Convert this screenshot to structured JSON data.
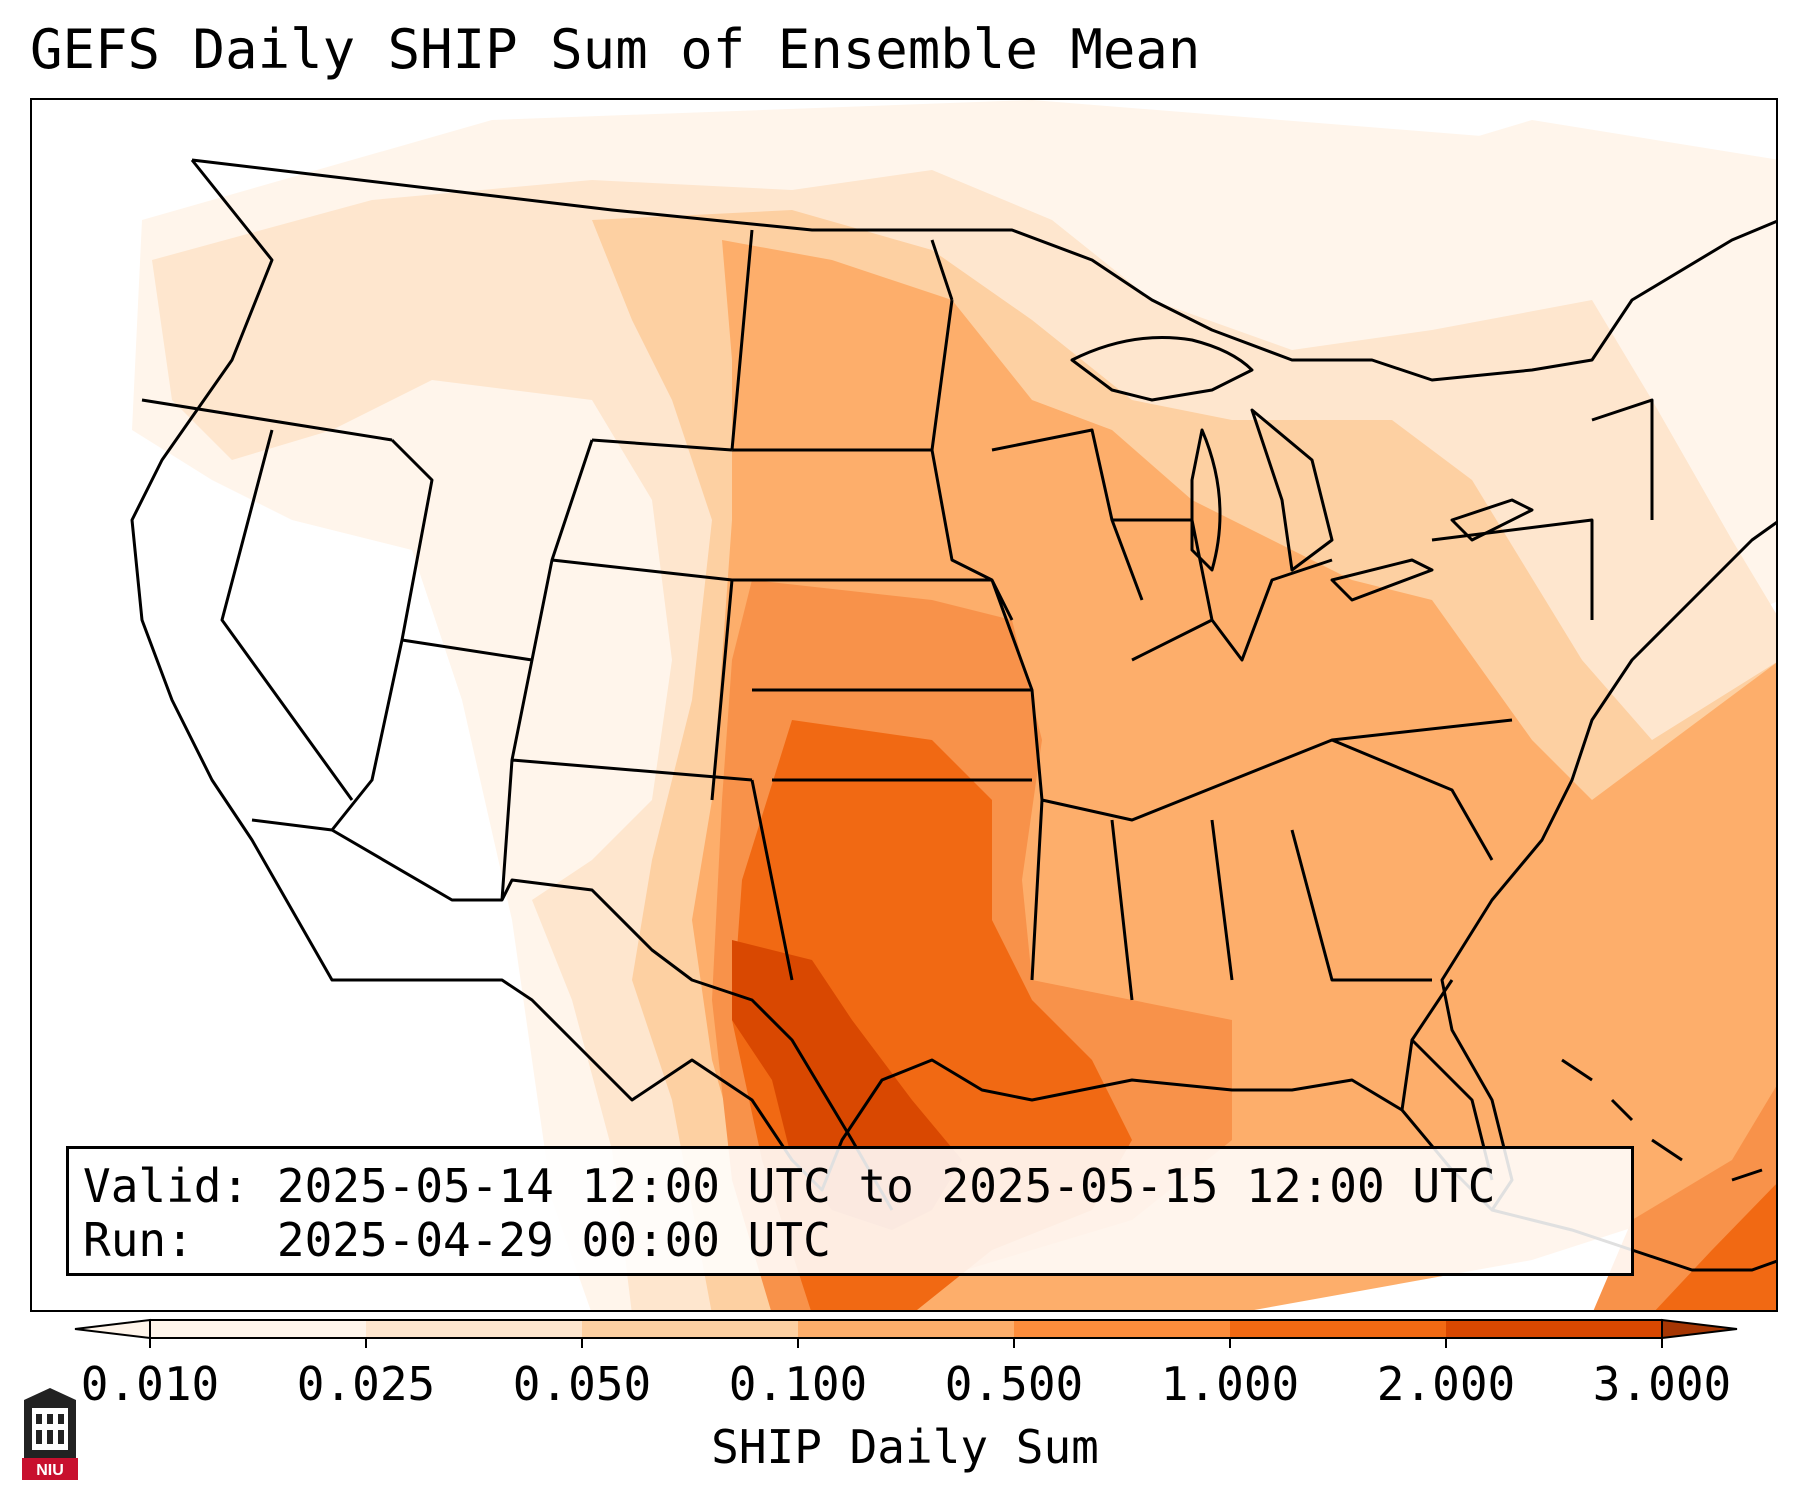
{
  "title": "GEFS Daily SHIP Sum of Ensemble Mean",
  "info": {
    "valid_label": "Valid:",
    "valid_value": "2025-05-14 12:00 UTC to 2025-05-15 12:00 UTC",
    "run_label": "Run:",
    "run_value": "2025-04-29 00:00 UTC"
  },
  "colorbar": {
    "label": "SHIP Daily Sum",
    "ticks": [
      "0.010",
      "0.025",
      "0.050",
      "0.100",
      "0.500",
      "1.000",
      "2.000",
      "3.000"
    ],
    "colors": [
      "#fff5eb",
      "#fee6ce",
      "#fdd0a2",
      "#fdae6b",
      "#fd8d3c",
      "#f16913",
      "#d94801",
      "#a63603"
    ],
    "extend": "both"
  },
  "map": {
    "region": "Contiguous United States",
    "max_region": "South Texas",
    "colors": {
      "level1": "#fff5eb",
      "level2": "#fee6ce",
      "level3": "#fdd0a2",
      "level4": "#fdae6b",
      "level5": "#f8924a",
      "level6": "#f16913",
      "level7": "#d94801"
    }
  },
  "logo": {
    "text": "NIU",
    "accent": "#c8102e"
  }
}
